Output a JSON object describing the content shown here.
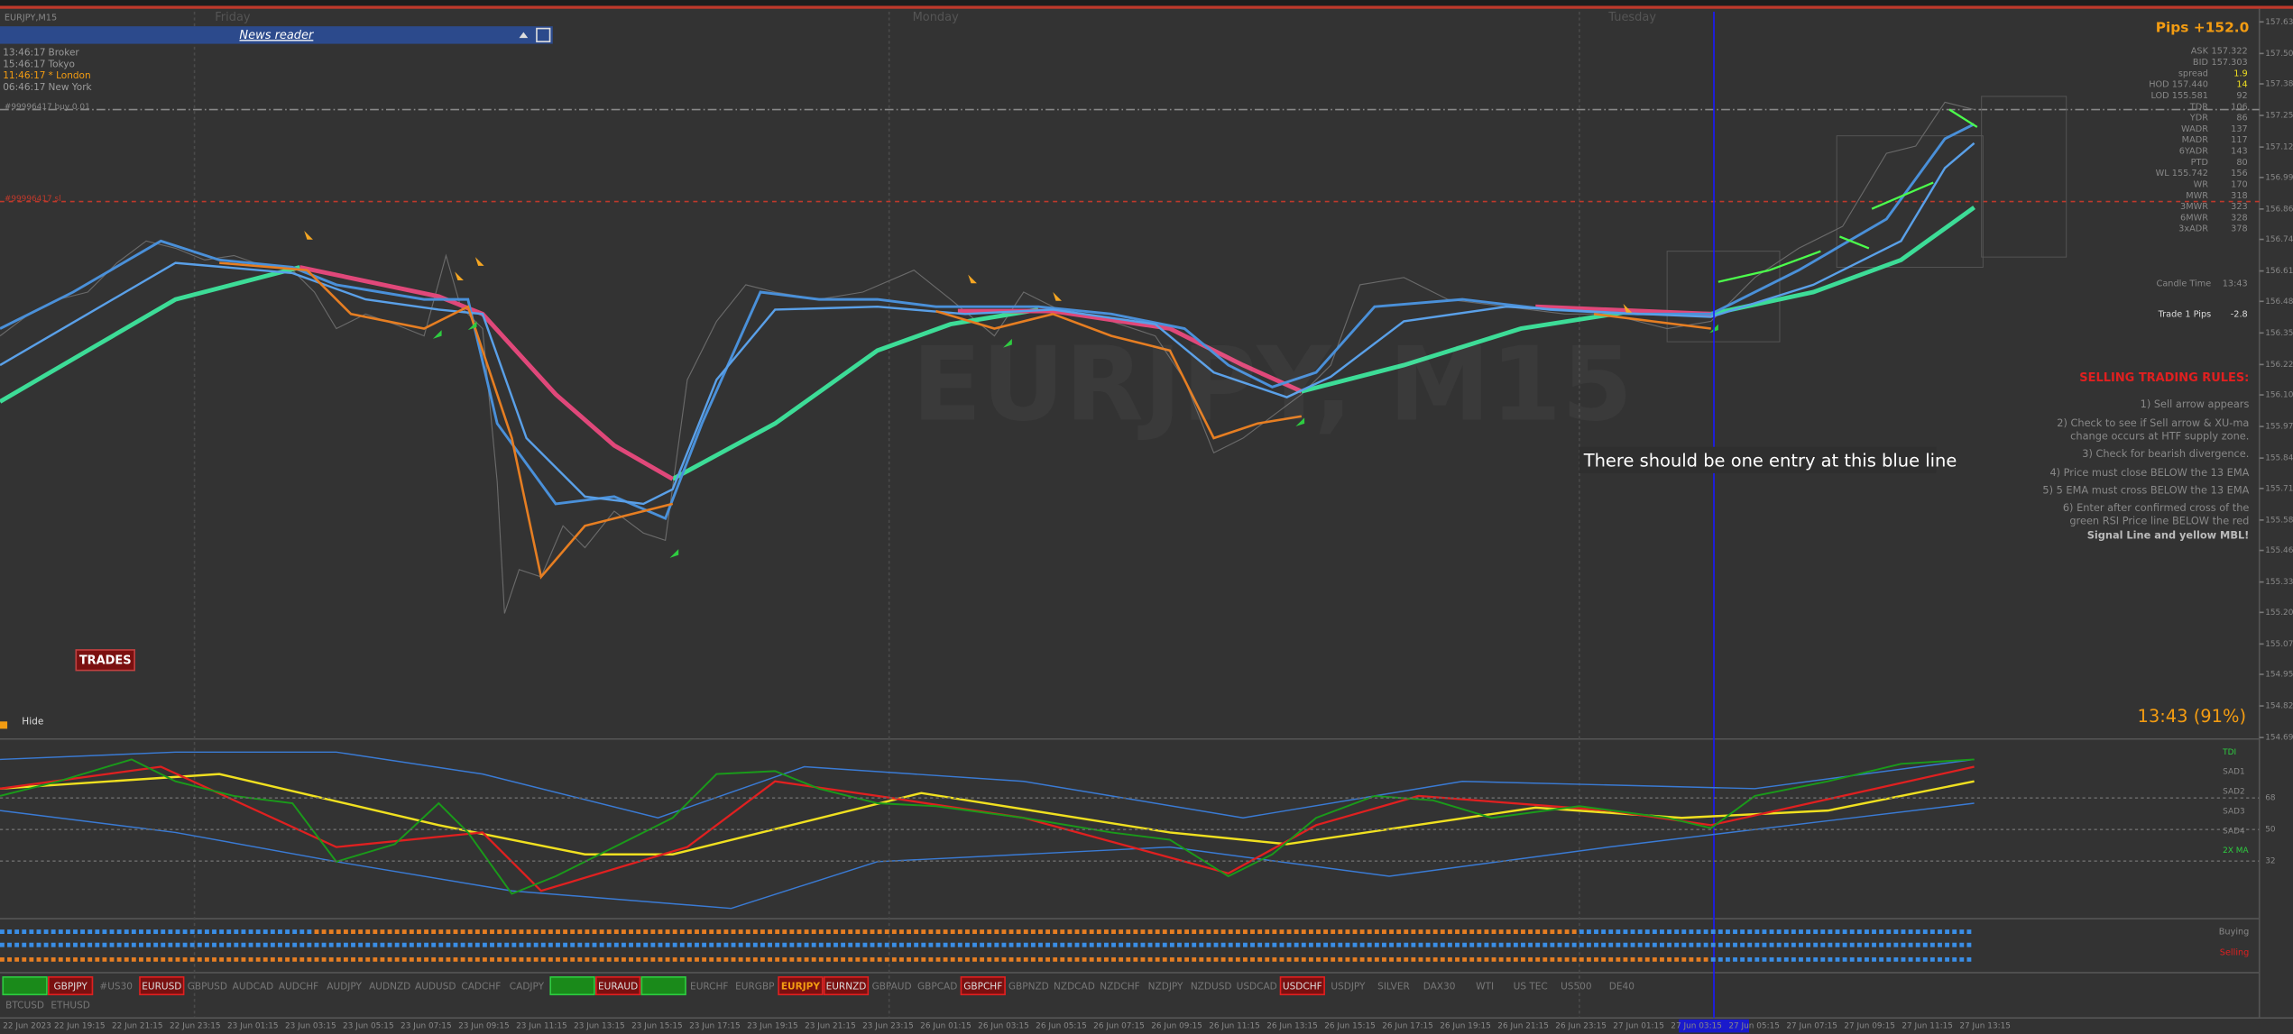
{
  "window": {
    "symbol": "EURJPY,M15",
    "watermark": "EURJPY, M15"
  },
  "news_reader": {
    "title": "News reader"
  },
  "clocks": [
    {
      "time": "13:46:17",
      "label": "Broker",
      "color": "#9a9a9a"
    },
    {
      "time": "15:46:17",
      "label": "Tokyo",
      "color": "#9a9a9a"
    },
    {
      "time": "11:46:17",
      "label": "* London",
      "color": "#f39c12"
    },
    {
      "time": "06:46:17",
      "label": "New York",
      "color": "#9a9a9a"
    }
  ],
  "day_labels": [
    {
      "text": "Friday",
      "x": 147
    },
    {
      "text": "Monday",
      "x": 624
    },
    {
      "text": "Tuesday",
      "x": 1100
    }
  ],
  "order_lines": [
    "#99996417 buy 0.01",
    "#99996417 sl"
  ],
  "info_panel": {
    "pips": "Pips +152.0",
    "rows": [
      [
        "ASK",
        "157.322"
      ],
      [
        "BID",
        "157.303"
      ],
      [
        "spread",
        "1.9"
      ],
      [
        "HOD 157.440",
        "14"
      ],
      [
        "LOD 155.581",
        "92"
      ],
      [
        "TDR",
        "106"
      ],
      [
        "YDR",
        "86"
      ],
      [
        "WADR",
        "137"
      ],
      [
        "MADR",
        "117"
      ],
      [
        "6YADR",
        "143"
      ],
      [
        "PTD",
        "80"
      ],
      [
        "WL 155.742",
        "156"
      ],
      [
        "WR",
        "170"
      ],
      [
        "MWR",
        "318"
      ],
      [
        "3MWR",
        "323"
      ],
      [
        "6MWR",
        "328"
      ],
      [
        "3xADR",
        "378"
      ],
      [
        "Candle Time",
        "13:43"
      ],
      [
        "Trade 1 Pips",
        "-2.8"
      ]
    ]
  },
  "rules": {
    "title": "SELLING TRADING RULES:",
    "lines": [
      "1) Sell arrow appears",
      "2) Check to see if Sell arrow & XU-ma",
      "change occurs at HTF supply zone.",
      "3) Check for bearish divergence.",
      "4) Price must close BELOW the 13 EMA",
      "5) 5 EMA must cross BELOW the 13 EMA",
      "6) Enter after confirmed cross of the",
      "green RSI Price line BELOW the red",
      "Signal Line and yellow MBL!"
    ]
  },
  "annotation": "There should be one entry at this blue line",
  "trades_button": "TRADES",
  "hide_button": "Hide",
  "timer": "13:43 (91%)",
  "price_axis": {
    "ylim": [
      154.692,
      157.637
    ],
    "yticks": [
      157.637,
      157.507,
      157.382,
      157.252,
      157.122,
      156.997,
      156.867,
      156.742,
      156.612,
      156.487,
      156.357,
      156.227,
      156.102,
      155.972,
      155.842,
      155.717,
      155.587,
      155.462,
      155.332,
      155.207,
      155.077,
      154.952,
      154.822,
      154.692
    ]
  },
  "indicator": {
    "labels": [
      {
        "text": "TDI",
        "color": "#2ecc40"
      },
      {
        "text": "SAD1",
        "color": "#888"
      },
      {
        "text": "SAD2",
        "color": "#888"
      },
      {
        "text": "SAD3",
        "color": "#888"
      },
      {
        "text": "SAD4",
        "color": "#888"
      },
      {
        "text": "2X MA",
        "color": "#2ecc40"
      }
    ],
    "ylim": [
      0,
      100
    ],
    "yticks": [
      68,
      50,
      32
    ]
  },
  "signal_pane": {
    "labels": [
      {
        "text": "Buying",
        "color": "#888"
      },
      {
        "text": "Selling",
        "color": "#e02020"
      }
    ]
  },
  "symbols": [
    {
      "name": null,
      "state": "buy"
    },
    {
      "name": "GBPJPY",
      "state": "sell"
    },
    {
      "name": "#US30",
      "state": "none"
    },
    {
      "name": "EURUSD",
      "state": "sell"
    },
    {
      "name": "GBPUSD",
      "state": "none"
    },
    {
      "name": "AUDCAD",
      "state": "none"
    },
    {
      "name": "AUDCHF",
      "state": "none"
    },
    {
      "name": "AUDJPY",
      "state": "none"
    },
    {
      "name": "AUDNZD",
      "state": "none"
    },
    {
      "name": "AUDUSD",
      "state": "none"
    },
    {
      "name": "CADCHF",
      "state": "none"
    },
    {
      "name": "CADJPY",
      "state": "none"
    },
    {
      "name": null,
      "state": "buy"
    },
    {
      "name": "EURAUD",
      "state": "sell"
    },
    {
      "name": null,
      "state": "buy"
    },
    {
      "name": "EURCHF",
      "state": "none"
    },
    {
      "name": "EURGBP",
      "state": "none"
    },
    {
      "name": "EURJPY",
      "state": "current"
    },
    {
      "name": "EURNZD",
      "state": "sell"
    },
    {
      "name": "GBPAUD",
      "state": "none"
    },
    {
      "name": "GBPCAD",
      "state": "none"
    },
    {
      "name": "GBPCHF",
      "state": "sell"
    },
    {
      "name": "GBPNZD",
      "state": "none"
    },
    {
      "name": "NZDCAD",
      "state": "none"
    },
    {
      "name": "NZDCHF",
      "state": "none"
    },
    {
      "name": "NZDJPY",
      "state": "none"
    },
    {
      "name": "NZDUSD",
      "state": "none"
    },
    {
      "name": "USDCAD",
      "state": "none"
    },
    {
      "name": "USDCHF",
      "state": "sell"
    },
    {
      "name": "USDJPY",
      "state": "none"
    },
    {
      "name": "SILVER",
      "state": "none"
    },
    {
      "name": "DAX30",
      "state": "none"
    },
    {
      "name": "WTI",
      "state": "none"
    },
    {
      "name": "US TEC",
      "state": "none"
    },
    {
      "name": "US500",
      "state": "none"
    },
    {
      "name": "DE40",
      "state": "none"
    }
  ],
  "symbols_row2": [
    "BTCUSD",
    "ETHUSD"
  ],
  "time_axis": [
    "22 Jun 2023",
    "22 Jun 19:15",
    "22 Jun 21:15",
    "22 Jun 23:15",
    "23 Jun 01:15",
    "23 Jun 03:15",
    "23 Jun 05:15",
    "23 Jun 07:15",
    "23 Jun 09:15",
    "23 Jun 11:15",
    "23 Jun 13:15",
    "23 Jun 15:15",
    "23 Jun 17:15",
    "23 Jun 19:15",
    "23 Jun 21:15",
    "23 Jun 23:15",
    "26 Jun 01:15",
    "26 Jun 03:15",
    "26 Jun 05:15",
    "26 Jun 07:15",
    "26 Jun 09:15",
    "26 Jun 11:15",
    "26 Jun 13:15",
    "26 Jun 15:15",
    "26 Jun 17:15",
    "26 Jun 19:15",
    "26 Jun 21:15",
    "26 Jun 23:15",
    "27 Jun 01:15",
    "27 Jun 03:15",
    "27 Jun 05:15",
    "27 Jun 07:15",
    "27 Jun 09:15",
    "27 Jun 11:15",
    "27 Jun 13:15"
  ]
}
